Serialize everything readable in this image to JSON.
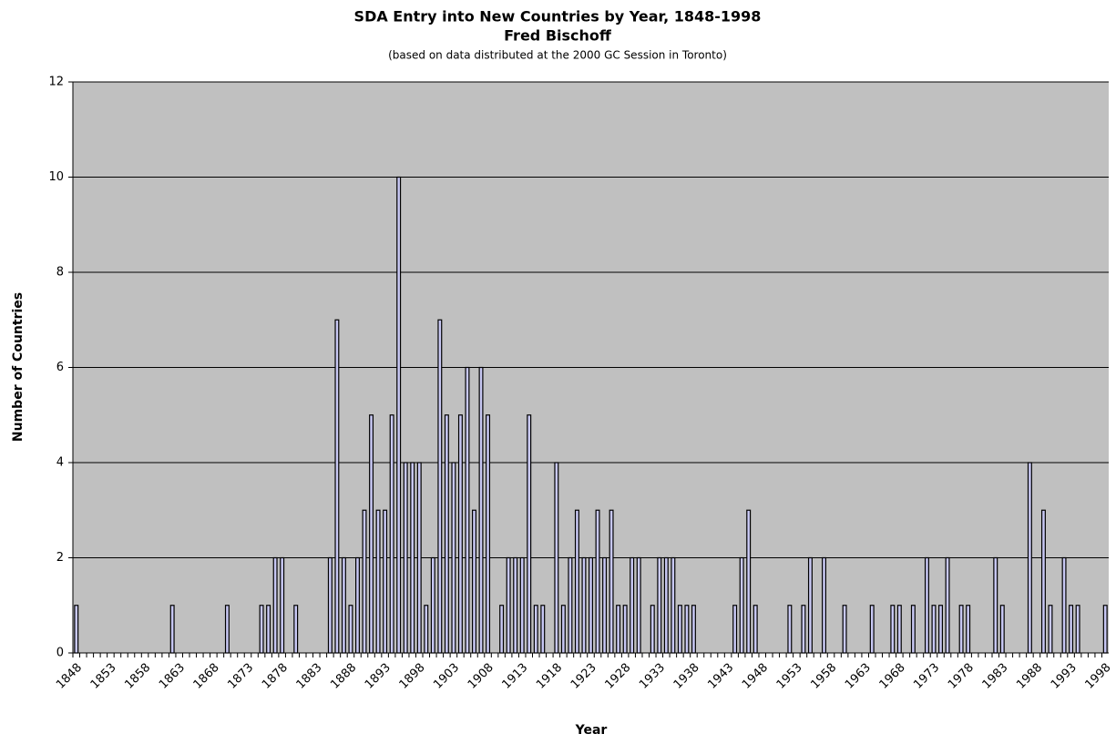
{
  "chart_data": {
    "type": "bar",
    "title": "SDA Entry into New Countries by Year, 1848-1998",
    "subtitle": "Fred Bischoff",
    "note": "(based on data distributed at the 2000 GC Session in Toronto)",
    "x_label": "Year",
    "y_label": "Number of Countries",
    "categories": [
      "1848",
      null,
      null,
      null,
      null,
      "1853",
      null,
      null,
      null,
      null,
      "1858",
      null,
      null,
      null,
      null,
      "1863",
      null,
      null,
      null,
      null,
      "1868",
      null,
      null,
      null,
      null,
      "1873",
      null,
      null,
      null,
      null,
      "1878",
      null,
      null,
      null,
      null,
      "1883",
      null,
      null,
      null,
      null,
      "1888",
      null,
      null,
      null,
      null,
      "1893",
      null,
      null,
      null,
      null,
      "1898",
      null,
      null,
      null,
      null,
      "1903",
      null,
      null,
      null,
      null,
      "1908",
      null,
      null,
      null,
      null,
      "1913",
      null,
      null,
      null,
      null,
      "1918",
      null,
      null,
      null,
      null,
      "1923",
      null,
      null,
      null,
      null,
      "1928",
      null,
      null,
      null,
      null,
      "1933",
      null,
      null,
      null,
      null,
      "1938",
      null,
      null,
      null,
      null,
      "1943",
      null,
      null,
      null,
      null,
      "1948",
      null,
      null,
      null,
      null,
      "1953",
      null,
      null,
      null,
      null,
      "1958",
      null,
      null,
      null,
      null,
      "1963",
      null,
      null,
      null,
      null,
      "1968",
      null,
      null,
      null,
      null,
      "1973",
      null,
      null,
      null,
      null,
      "1978",
      null,
      null,
      null,
      null,
      "1983",
      null,
      null,
      null,
      null,
      "1988",
      null,
      null,
      null,
      null,
      "1993",
      null,
      null,
      null,
      null,
      "1998"
    ],
    "values": [
      1,
      0,
      0,
      0,
      0,
      0,
      0,
      0,
      0,
      0,
      0,
      0,
      0,
      0,
      1,
      0,
      0,
      0,
      0,
      0,
      0,
      0,
      1,
      0,
      0,
      0,
      0,
      1,
      1,
      2,
      2,
      0,
      1,
      0,
      0,
      0,
      0,
      2,
      7,
      2,
      1,
      2,
      3,
      5,
      3,
      3,
      5,
      10,
      4,
      4,
      4,
      1,
      2,
      7,
      5,
      4,
      5,
      6,
      3,
      6,
      5,
      0,
      1,
      2,
      2,
      2,
      5,
      1,
      1,
      0,
      4,
      1,
      2,
      3,
      2,
      2,
      3,
      2,
      3,
      1,
      1,
      2,
      2,
      0,
      1,
      2,
      2,
      2,
      1,
      1,
      1,
      0,
      0,
      0,
      0,
      0,
      1,
      2,
      3,
      1,
      0,
      0,
      0,
      0,
      1,
      0,
      1,
      2,
      0,
      2,
      0,
      0,
      1,
      0,
      0,
      0,
      1,
      0,
      0,
      1,
      1,
      0,
      1,
      0,
      2,
      1,
      1,
      2,
      0,
      1,
      1,
      0,
      0,
      0,
      2,
      1,
      0,
      0,
      0,
      4,
      0,
      3,
      1,
      0,
      2,
      1,
      1,
      0,
      0,
      0,
      1
    ],
    "color": "#c8c8f4",
    "background": "#c0c0c0",
    "ylim": [
      0,
      12
    ],
    "yticks": [
      0,
      2,
      4,
      6,
      8,
      10,
      12
    ],
    "grid": true
  }
}
